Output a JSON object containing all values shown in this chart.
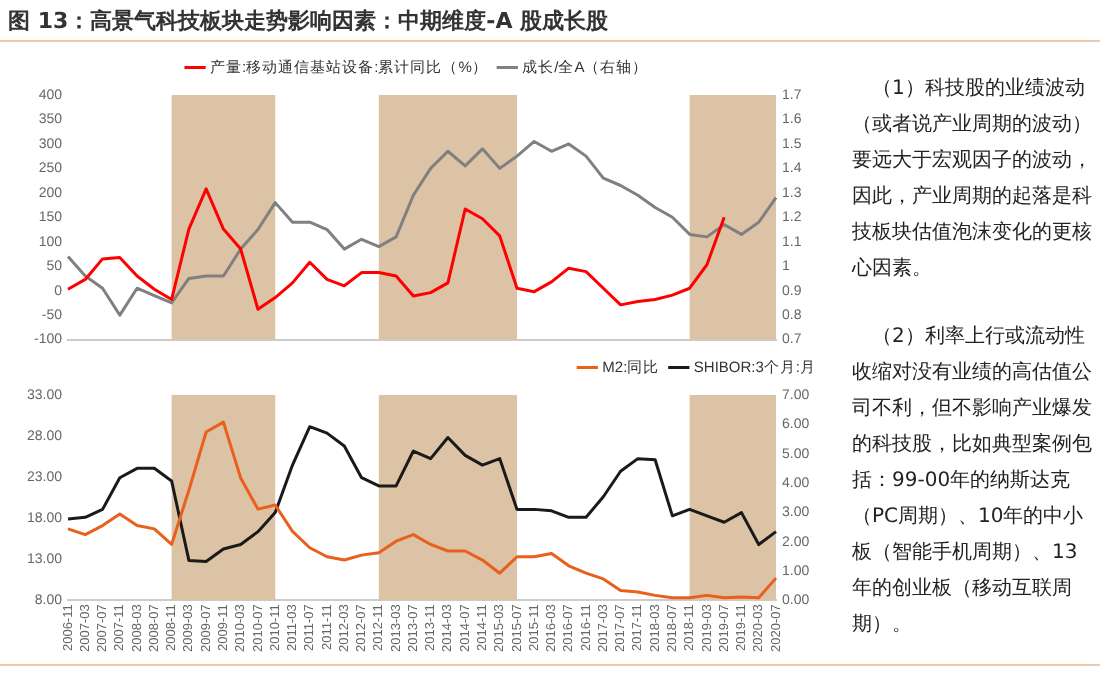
{
  "chart_data": [
    {
      "type": "line",
      "title": "图 13：高景气科技板块走势影响因素：中期维度-A 股成长股",
      "categories": [
        "2006-11",
        "2007-03",
        "2007-07",
        "2007-11",
        "2008-03",
        "2008-07",
        "2008-11",
        "2009-03",
        "2009-07",
        "2009-11",
        "2010-03",
        "2010-07",
        "2010-11",
        "2011-03",
        "2011-07",
        "2011-11",
        "2012-03",
        "2012-07",
        "2012-11",
        "2013-03",
        "2013-07",
        "2013-11",
        "2014-03",
        "2014-07",
        "2014-11",
        "2015-03",
        "2015-07",
        "2015-11",
        "2016-03",
        "2016-07",
        "2016-11",
        "2017-03",
        "2017-07",
        "2017-11",
        "2018-03",
        "2018-07",
        "2018-11",
        "2019-03",
        "2019-07",
        "2019-11",
        "2020-03",
        "2020-07"
      ],
      "series": [
        {
          "name": "产量:移动通信基站设备:累计同比（%）",
          "color": "#ff0000",
          "values": [
            3,
            23,
            65,
            68,
            30,
            3,
            -18,
            126,
            208,
            126,
            85,
            -38,
            -14,
            16,
            58,
            23,
            10,
            37,
            37,
            30,
            -11,
            -4,
            16,
            167,
            147,
            112,
            5,
            -2,
            18,
            46,
            39,
            5,
            -29,
            -22,
            -18,
            -9,
            5,
            53,
            150,
            null,
            null,
            null
          ]
        },
        {
          "name": "成长/全A（右轴）",
          "color": "#808080",
          "axis": "y2",
          "values": [
            1.04,
            0.96,
            0.91,
            0.8,
            0.91,
            0.88,
            0.85,
            0.95,
            0.96,
            0.96,
            1.07,
            1.15,
            1.26,
            1.18,
            1.18,
            1.15,
            1.07,
            1.11,
            1.08,
            1.12,
            1.29,
            1.4,
            1.47,
            1.41,
            1.48,
            1.4,
            1.45,
            1.51,
            1.47,
            1.5,
            1.45,
            1.36,
            1.33,
            1.29,
            1.24,
            1.2,
            1.13,
            1.12,
            1.17,
            1.13,
            1.18,
            1.28
          ]
        }
      ],
      "ylim": [
        -100,
        400
      ],
      "yticks": [
        -100,
        -50,
        0,
        50,
        100,
        150,
        200,
        250,
        300,
        350,
        400
      ],
      "y2lim": [
        0.7,
        1.7
      ],
      "y2ticks": [
        0.7,
        0.8,
        0.9,
        1,
        1.1,
        1.2,
        1.3,
        1.4,
        1.5,
        1.6,
        1.7
      ],
      "bands": [
        {
          "axis": "x",
          "from": "2008-11",
          "to": "2010-11",
          "color": "#dcc3a6"
        },
        {
          "axis": "x",
          "from": "2012-11",
          "to": "2015-07",
          "color": "#dcc3a6"
        },
        {
          "axis": "x",
          "from": "2018-11",
          "to": "2020-07",
          "color": "#dcc3a6"
        }
      ],
      "legend": "top",
      "marker": "none",
      "tick_labels": "y"
    },
    {
      "type": "line",
      "categories": [
        "2006-11",
        "2007-03",
        "2007-07",
        "2007-11",
        "2008-03",
        "2008-07",
        "2008-11",
        "2009-03",
        "2009-07",
        "2009-11",
        "2010-03",
        "2010-07",
        "2010-11",
        "2011-03",
        "2011-07",
        "2011-11",
        "2012-03",
        "2012-07",
        "2012-11",
        "2013-03",
        "2013-07",
        "2013-11",
        "2014-03",
        "2014-07",
        "2014-11",
        "2015-03",
        "2015-07",
        "2015-11",
        "2016-03",
        "2016-07",
        "2016-11",
        "2017-03",
        "2017-07",
        "2017-11",
        "2018-03",
        "2018-07",
        "2018-11",
        "2019-03",
        "2019-07",
        "2019-11",
        "2020-03",
        "2020-07"
      ],
      "series": [
        {
          "name": "M2:同比",
          "color": "#e8601c",
          "values": [
            16.7,
            16.0,
            17.1,
            18.5,
            17.1,
            16.7,
            14.8,
            21.4,
            28.5,
            29.7,
            22.9,
            19.1,
            19.6,
            16.4,
            14.4,
            13.3,
            12.9,
            13.5,
            13.8,
            15.2,
            16.0,
            14.8,
            14.0,
            14.0,
            12.9,
            11.3,
            13.3,
            13.3,
            13.7,
            12.2,
            11.3,
            10.6,
            9.2,
            9.0,
            8.6,
            8.3,
            8.3,
            8.6,
            8.3,
            8.4,
            8.3,
            10.7
          ]
        },
        {
          "name": "SHIBOR:3个月:月",
          "color": "#1a1a1a",
          "axis": "y2",
          "values": [
            2.77,
            2.83,
            3.1,
            4.18,
            4.5,
            4.5,
            4.07,
            1.36,
            1.32,
            1.75,
            1.9,
            2.34,
            2.99,
            4.61,
            5.92,
            5.7,
            5.26,
            4.18,
            3.9,
            3.9,
            5.09,
            4.83,
            5.55,
            4.94,
            4.61,
            4.83,
            3.1,
            3.1,
            3.05,
            2.83,
            2.83,
            3.53,
            4.4,
            4.83,
            4.79,
            2.88,
            3.1,
            2.88,
            2.66,
            2.99,
            1.9,
            2.34
          ]
        }
      ],
      "ylim": [
        8,
        33
      ],
      "yticks": [
        {
          "value": 8,
          "label": "8.00"
        },
        {
          "value": 13,
          "label": "13.00"
        },
        {
          "value": 18,
          "label": "18.00"
        },
        {
          "value": 23,
          "label": "23.00"
        },
        {
          "value": 28,
          "label": "28.00"
        },
        {
          "value": 33,
          "label": "33.00"
        }
      ],
      "y2lim": [
        0,
        7
      ],
      "y2ticks": [
        {
          "value": 0,
          "label": "0.00"
        },
        {
          "value": 1,
          "label": "1.00"
        },
        {
          "value": 2,
          "label": "2.00"
        },
        {
          "value": 3,
          "label": "3.00"
        },
        {
          "value": 4,
          "label": "4.00"
        },
        {
          "value": 5,
          "label": "5.00"
        },
        {
          "value": 6,
          "label": "6.00"
        },
        {
          "value": 7,
          "label": "7.00"
        }
      ],
      "bands": [
        {
          "axis": "x",
          "from": "2008-11",
          "to": "2010-11",
          "color": "#dcc3a6"
        },
        {
          "axis": "x",
          "from": "2012-11",
          "to": "2015-07",
          "color": "#dcc3a6"
        },
        {
          "axis": "x",
          "from": "2018-11",
          "to": "2020-07",
          "color": "#dcc3a6"
        }
      ],
      "legend": "top right",
      "marker": "none"
    },
    {
      "type": "other",
      "annotations": [
        "（1）科技股的业绩波动（或者说产业周期的波动）要远大于宏观因子的波动，因此，产业周期的起落是科技板块估值泡沫变化的更核心因素。",
        "（2）利率上行或流动性收缩对没有业绩的高估值公司不利，但不影响产业爆发的科技股，比如典型案例包括：99-00年的纳斯达克（PC周期）、10年的中小板（智能手机周期）、13年的创业板（移动互联周期）。"
      ]
    }
  ]
}
